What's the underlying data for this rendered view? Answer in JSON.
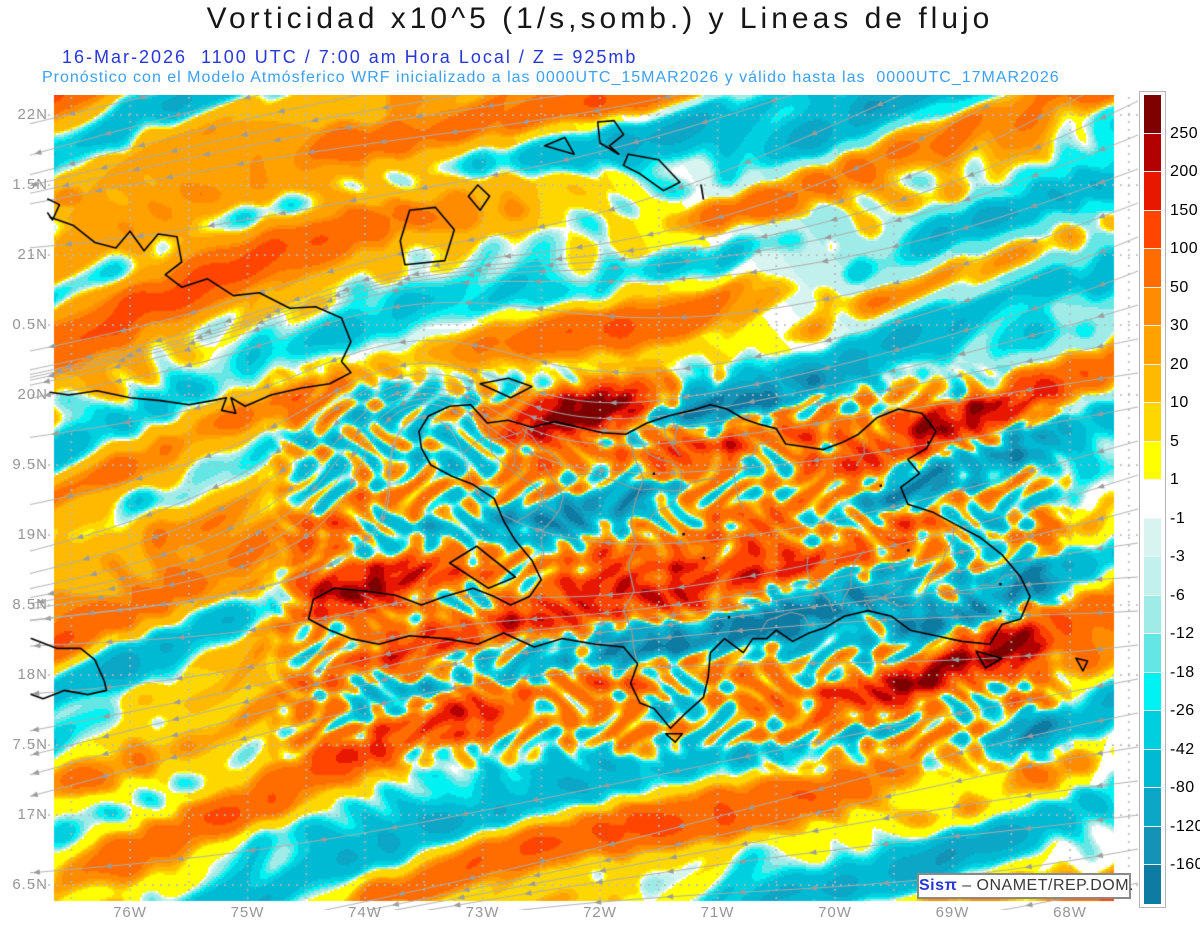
{
  "header": {
    "title": "Vorticidad x10^5 (1/s,somb.) y Lineas de flujo",
    "subtitle1": "16-Mar-2026  1100 UTC / 7:00 am Hora Local / Z = 925mb",
    "subtitle2": "Pronóstico con el Modelo Atmósferico WRF inicializado a las 0000UTC_15MAR2026 y válido hasta las  0000UTC_17MAR2026",
    "title_color": "#161616",
    "subtitle1_color": "#2737d9",
    "subtitle2_color": "#3da0f2"
  },
  "axes": {
    "lat_labels": [
      {
        "text": "22N",
        "lat": 22.0
      },
      {
        "text": "1.5N",
        "lat": 21.5
      },
      {
        "text": "21N",
        "lat": 21.0
      },
      {
        "text": "0.5N",
        "lat": 20.5
      },
      {
        "text": "20N",
        "lat": 20.0
      },
      {
        "text": "9.5N",
        "lat": 19.5
      },
      {
        "text": "19N",
        "lat": 19.0
      },
      {
        "text": "8.5N",
        "lat": 18.5
      },
      {
        "text": "18N",
        "lat": 18.0
      },
      {
        "text": "7.5N",
        "lat": 17.5
      },
      {
        "text": "17N",
        "lat": 17.0
      },
      {
        "text": "6.5N",
        "lat": 16.5
      }
    ],
    "lon_labels": [
      {
        "text": "76W",
        "lon": 76
      },
      {
        "text": "75W",
        "lon": 75
      },
      {
        "text": "74W",
        "lon": 74
      },
      {
        "text": "73W",
        "lon": 73
      },
      {
        "text": "72W",
        "lon": 72
      },
      {
        "text": "71W",
        "lon": 71
      },
      {
        "text": "70W",
        "lon": 70
      },
      {
        "text": "69W",
        "lon": 69
      },
      {
        "text": "68W",
        "lon": 68
      }
    ],
    "map_bounds": {
      "lat_min": 16.4,
      "lat_max": 22.15,
      "lon_west": 76.65,
      "lon_east": 67.5
    }
  },
  "colorbar": {
    "levels": [
      250,
      200,
      150,
      100,
      50,
      30,
      20,
      10,
      5,
      1,
      -1,
      -3,
      -6,
      -12,
      -18,
      -26,
      -42,
      -80,
      -120,
      -160
    ],
    "labels": [
      "250",
      "200",
      "150",
      "100",
      "50",
      "30",
      "20",
      "10",
      "5",
      "1",
      "-1",
      "-3",
      "-6",
      "-12",
      "-18",
      "-26",
      "-42",
      "-80",
      "-120",
      "-160"
    ],
    "colors": [
      "#7f0000",
      "#b30000",
      "#e81800",
      "#ff4500",
      "#ff6d00",
      "#ff8c00",
      "#ffa200",
      "#ffb900",
      "#ffd700",
      "#ffff00",
      "#ffffff",
      "#d7f4f0",
      "#c2f0ec",
      "#9febe8",
      "#64e6e4",
      "#00f2f2",
      "#00cfe0",
      "#00b9d2",
      "#0ca6c6",
      "#1593b6",
      "#0d7ba2"
    ]
  },
  "attribution": {
    "brand": "Sisπ",
    "text": " – ONAMET/REP.DOM.",
    "brand_color": "#2737d9",
    "text_color": "#3a3a3a"
  },
  "map": {
    "grid_color": "#b9b9b9",
    "streamline_color": "#aeaeae",
    "arrow_color": "#9c9c9c",
    "coast_color": "#000000",
    "border_color": "#9a9a9a",
    "coastlines": [
      {
        "name": "cuba-east",
        "pts": [
          [
            76.68,
            21.27
          ],
          [
            76.48,
            21.21
          ],
          [
            76.3,
            21.09
          ],
          [
            76.12,
            21.05
          ],
          [
            76.0,
            21.17
          ],
          [
            75.88,
            21.03
          ],
          [
            75.76,
            21.15
          ],
          [
            75.6,
            21.13
          ],
          [
            75.56,
            20.95
          ],
          [
            75.7,
            20.86
          ],
          [
            75.56,
            20.77
          ],
          [
            75.34,
            20.83
          ],
          [
            75.12,
            20.71
          ],
          [
            74.9,
            20.73
          ],
          [
            74.64,
            20.62
          ],
          [
            74.42,
            20.63
          ],
          [
            74.2,
            20.55
          ],
          [
            74.12,
            20.38
          ],
          [
            74.2,
            20.24
          ],
          [
            74.12,
            20.16
          ],
          [
            74.3,
            20.08
          ],
          [
            74.54,
            20.05
          ],
          [
            74.8,
            20.0
          ],
          [
            75.02,
            19.92
          ],
          [
            75.14,
            19.98
          ],
          [
            75.1,
            19.87
          ],
          [
            75.22,
            19.89
          ],
          [
            75.18,
            19.98
          ],
          [
            75.3,
            19.96
          ],
          [
            75.5,
            19.93
          ],
          [
            75.74,
            19.96
          ],
          [
            76.0,
            19.98
          ],
          [
            76.28,
            20.03
          ],
          [
            76.52,
            20.0
          ],
          [
            76.68,
            20.02
          ]
        ]
      },
      {
        "name": "cuba-hook",
        "pts": [
          [
            76.7,
            21.4
          ],
          [
            76.6,
            21.36
          ],
          [
            76.66,
            21.25
          ],
          [
            76.7,
            21.3
          ]
        ]
      },
      {
        "name": "hispaniola",
        "pts": [
          [
            73.46,
            19.85
          ],
          [
            73.28,
            19.92
          ],
          [
            73.1,
            19.93
          ],
          [
            72.96,
            19.8
          ],
          [
            72.78,
            19.82
          ],
          [
            72.58,
            19.77
          ],
          [
            72.38,
            19.81
          ],
          [
            72.18,
            19.77
          ],
          [
            71.98,
            19.73
          ],
          [
            71.78,
            19.72
          ],
          [
            71.6,
            19.8
          ],
          [
            71.42,
            19.85
          ],
          [
            71.22,
            19.89
          ],
          [
            71.06,
            19.93
          ],
          [
            70.92,
            19.9
          ],
          [
            70.78,
            19.83
          ],
          [
            70.64,
            19.79
          ],
          [
            70.5,
            19.76
          ],
          [
            70.42,
            19.65
          ],
          [
            70.26,
            19.63
          ],
          [
            70.1,
            19.61
          ],
          [
            69.94,
            19.66
          ],
          [
            69.8,
            19.72
          ],
          [
            69.64,
            19.84
          ],
          [
            69.46,
            19.9
          ],
          [
            69.26,
            19.87
          ],
          [
            69.14,
            19.74
          ],
          [
            69.22,
            19.62
          ],
          [
            69.38,
            19.54
          ],
          [
            69.28,
            19.44
          ],
          [
            69.44,
            19.34
          ],
          [
            69.38,
            19.22
          ],
          [
            69.16,
            19.16
          ],
          [
            68.94,
            19.06
          ],
          [
            68.76,
            18.98
          ],
          [
            68.58,
            18.86
          ],
          [
            68.42,
            18.7
          ],
          [
            68.34,
            18.56
          ],
          [
            68.42,
            18.4
          ],
          [
            68.58,
            18.36
          ],
          [
            68.68,
            18.22
          ],
          [
            68.92,
            18.24
          ],
          [
            69.14,
            18.28
          ],
          [
            69.36,
            18.32
          ],
          [
            69.52,
            18.42
          ],
          [
            69.72,
            18.46
          ],
          [
            69.92,
            18.42
          ],
          [
            70.08,
            18.34
          ],
          [
            70.22,
            18.3
          ],
          [
            70.36,
            18.24
          ],
          [
            70.5,
            18.32
          ],
          [
            70.58,
            18.26
          ],
          [
            70.7,
            18.26
          ],
          [
            70.78,
            18.16
          ],
          [
            70.94,
            18.26
          ],
          [
            71.06,
            18.16
          ],
          [
            71.08,
            17.98
          ],
          [
            71.12,
            17.84
          ],
          [
            71.28,
            17.72
          ],
          [
            71.4,
            17.62
          ],
          [
            71.54,
            17.76
          ],
          [
            71.66,
            17.8
          ],
          [
            71.74,
            17.94
          ],
          [
            71.68,
            18.08
          ],
          [
            71.8,
            18.2
          ],
          [
            72.04,
            18.22
          ],
          [
            72.32,
            18.26
          ],
          [
            72.56,
            18.2
          ],
          [
            72.82,
            18.3
          ],
          [
            73.04,
            18.22
          ],
          [
            73.32,
            18.26
          ],
          [
            73.62,
            18.28
          ],
          [
            73.88,
            18.22
          ],
          [
            74.12,
            18.26
          ],
          [
            74.3,
            18.32
          ],
          [
            74.48,
            18.4
          ],
          [
            74.44,
            18.54
          ],
          [
            74.26,
            18.62
          ],
          [
            74.0,
            18.6
          ],
          [
            73.74,
            18.57
          ],
          [
            73.52,
            18.5
          ],
          [
            73.32,
            18.56
          ],
          [
            73.08,
            18.62
          ],
          [
            72.9,
            18.56
          ],
          [
            72.76,
            18.5
          ],
          [
            72.6,
            18.56
          ],
          [
            72.5,
            18.68
          ],
          [
            72.58,
            18.82
          ],
          [
            72.72,
            18.96
          ],
          [
            72.82,
            19.1
          ],
          [
            72.9,
            19.26
          ],
          [
            73.08,
            19.36
          ],
          [
            73.26,
            19.42
          ],
          [
            73.44,
            19.5
          ],
          [
            73.52,
            19.62
          ],
          [
            73.54,
            19.74
          ],
          [
            73.46,
            19.85
          ]
        ]
      },
      {
        "name": "jamaica-east",
        "pts": [
          [
            76.84,
            18.26
          ],
          [
            76.62,
            18.19
          ],
          [
            76.42,
            18.19
          ],
          [
            76.3,
            18.11
          ],
          [
            76.22,
            17.96
          ],
          [
            76.2,
            17.89
          ],
          [
            76.36,
            17.86
          ],
          [
            76.56,
            17.89
          ],
          [
            76.74,
            17.83
          ],
          [
            76.84,
            17.86
          ]
        ]
      },
      {
        "name": "tortuga",
        "pts": [
          [
            73.02,
            20.08
          ],
          [
            72.78,
            20.12
          ],
          [
            72.58,
            20.06
          ],
          [
            72.76,
            19.98
          ],
          [
            73.02,
            20.08
          ]
        ]
      },
      {
        "name": "gonave",
        "pts": [
          [
            73.28,
            18.8
          ],
          [
            73.05,
            18.92
          ],
          [
            72.72,
            18.7
          ],
          [
            72.95,
            18.62
          ],
          [
            73.28,
            18.8
          ]
        ]
      },
      {
        "name": "great-inagua",
        "pts": [
          [
            73.62,
            21.32
          ],
          [
            73.4,
            21.34
          ],
          [
            73.24,
            21.18
          ],
          [
            73.32,
            20.96
          ],
          [
            73.66,
            20.93
          ],
          [
            73.7,
            21.1
          ],
          [
            73.62,
            21.32
          ]
        ]
      },
      {
        "name": "little-inagua",
        "pts": [
          [
            73.04,
            21.5
          ],
          [
            72.94,
            21.42
          ],
          [
            73.02,
            21.32
          ],
          [
            73.12,
            21.42
          ],
          [
            73.04,
            21.5
          ]
        ]
      },
      {
        "name": "west-caicos",
        "pts": [
          [
            72.47,
            21.78
          ],
          [
            72.3,
            21.84
          ],
          [
            72.22,
            21.72
          ],
          [
            72.47,
            21.78
          ]
        ]
      },
      {
        "name": "north-caicos",
        "pts": [
          [
            72.02,
            21.95
          ],
          [
            71.88,
            21.96
          ],
          [
            71.8,
            21.86
          ],
          [
            71.92,
            21.78
          ],
          [
            71.84,
            21.72
          ],
          [
            72.0,
            21.8
          ],
          [
            72.02,
            21.95
          ]
        ]
      },
      {
        "name": "east-caicos",
        "pts": [
          [
            71.76,
            21.72
          ],
          [
            71.5,
            21.68
          ],
          [
            71.32,
            21.52
          ],
          [
            71.46,
            21.46
          ],
          [
            71.66,
            21.58
          ],
          [
            71.8,
            21.64
          ],
          [
            71.76,
            21.72
          ]
        ]
      },
      {
        "name": "grand-turk",
        "pts": [
          [
            71.14,
            21.5
          ],
          [
            71.12,
            21.4
          ]
        ]
      },
      {
        "name": "saona",
        "pts": [
          [
            68.8,
            18.17
          ],
          [
            68.58,
            18.12
          ],
          [
            68.72,
            18.05
          ],
          [
            68.8,
            18.17
          ]
        ]
      },
      {
        "name": "mona",
        "pts": [
          [
            67.95,
            18.12
          ],
          [
            67.85,
            18.1
          ],
          [
            67.89,
            18.03
          ],
          [
            67.95,
            18.12
          ]
        ]
      },
      {
        "name": "beata",
        "pts": [
          [
            71.44,
            17.58
          ],
          [
            71.36,
            17.52
          ],
          [
            71.3,
            17.58
          ],
          [
            71.44,
            17.58
          ]
        ]
      }
    ],
    "haiti_dr_border": [
      [
        71.76,
        19.72
      ],
      [
        71.71,
        19.56
      ],
      [
        71.63,
        19.4
      ],
      [
        71.7,
        19.24
      ],
      [
        71.74,
        19.08
      ],
      [
        71.69,
        18.94
      ],
      [
        71.76,
        18.78
      ],
      [
        71.71,
        18.6
      ],
      [
        71.8,
        18.46
      ],
      [
        71.73,
        18.32
      ],
      [
        71.71,
        18.18
      ],
      [
        71.68,
        18.08
      ]
    ]
  }
}
